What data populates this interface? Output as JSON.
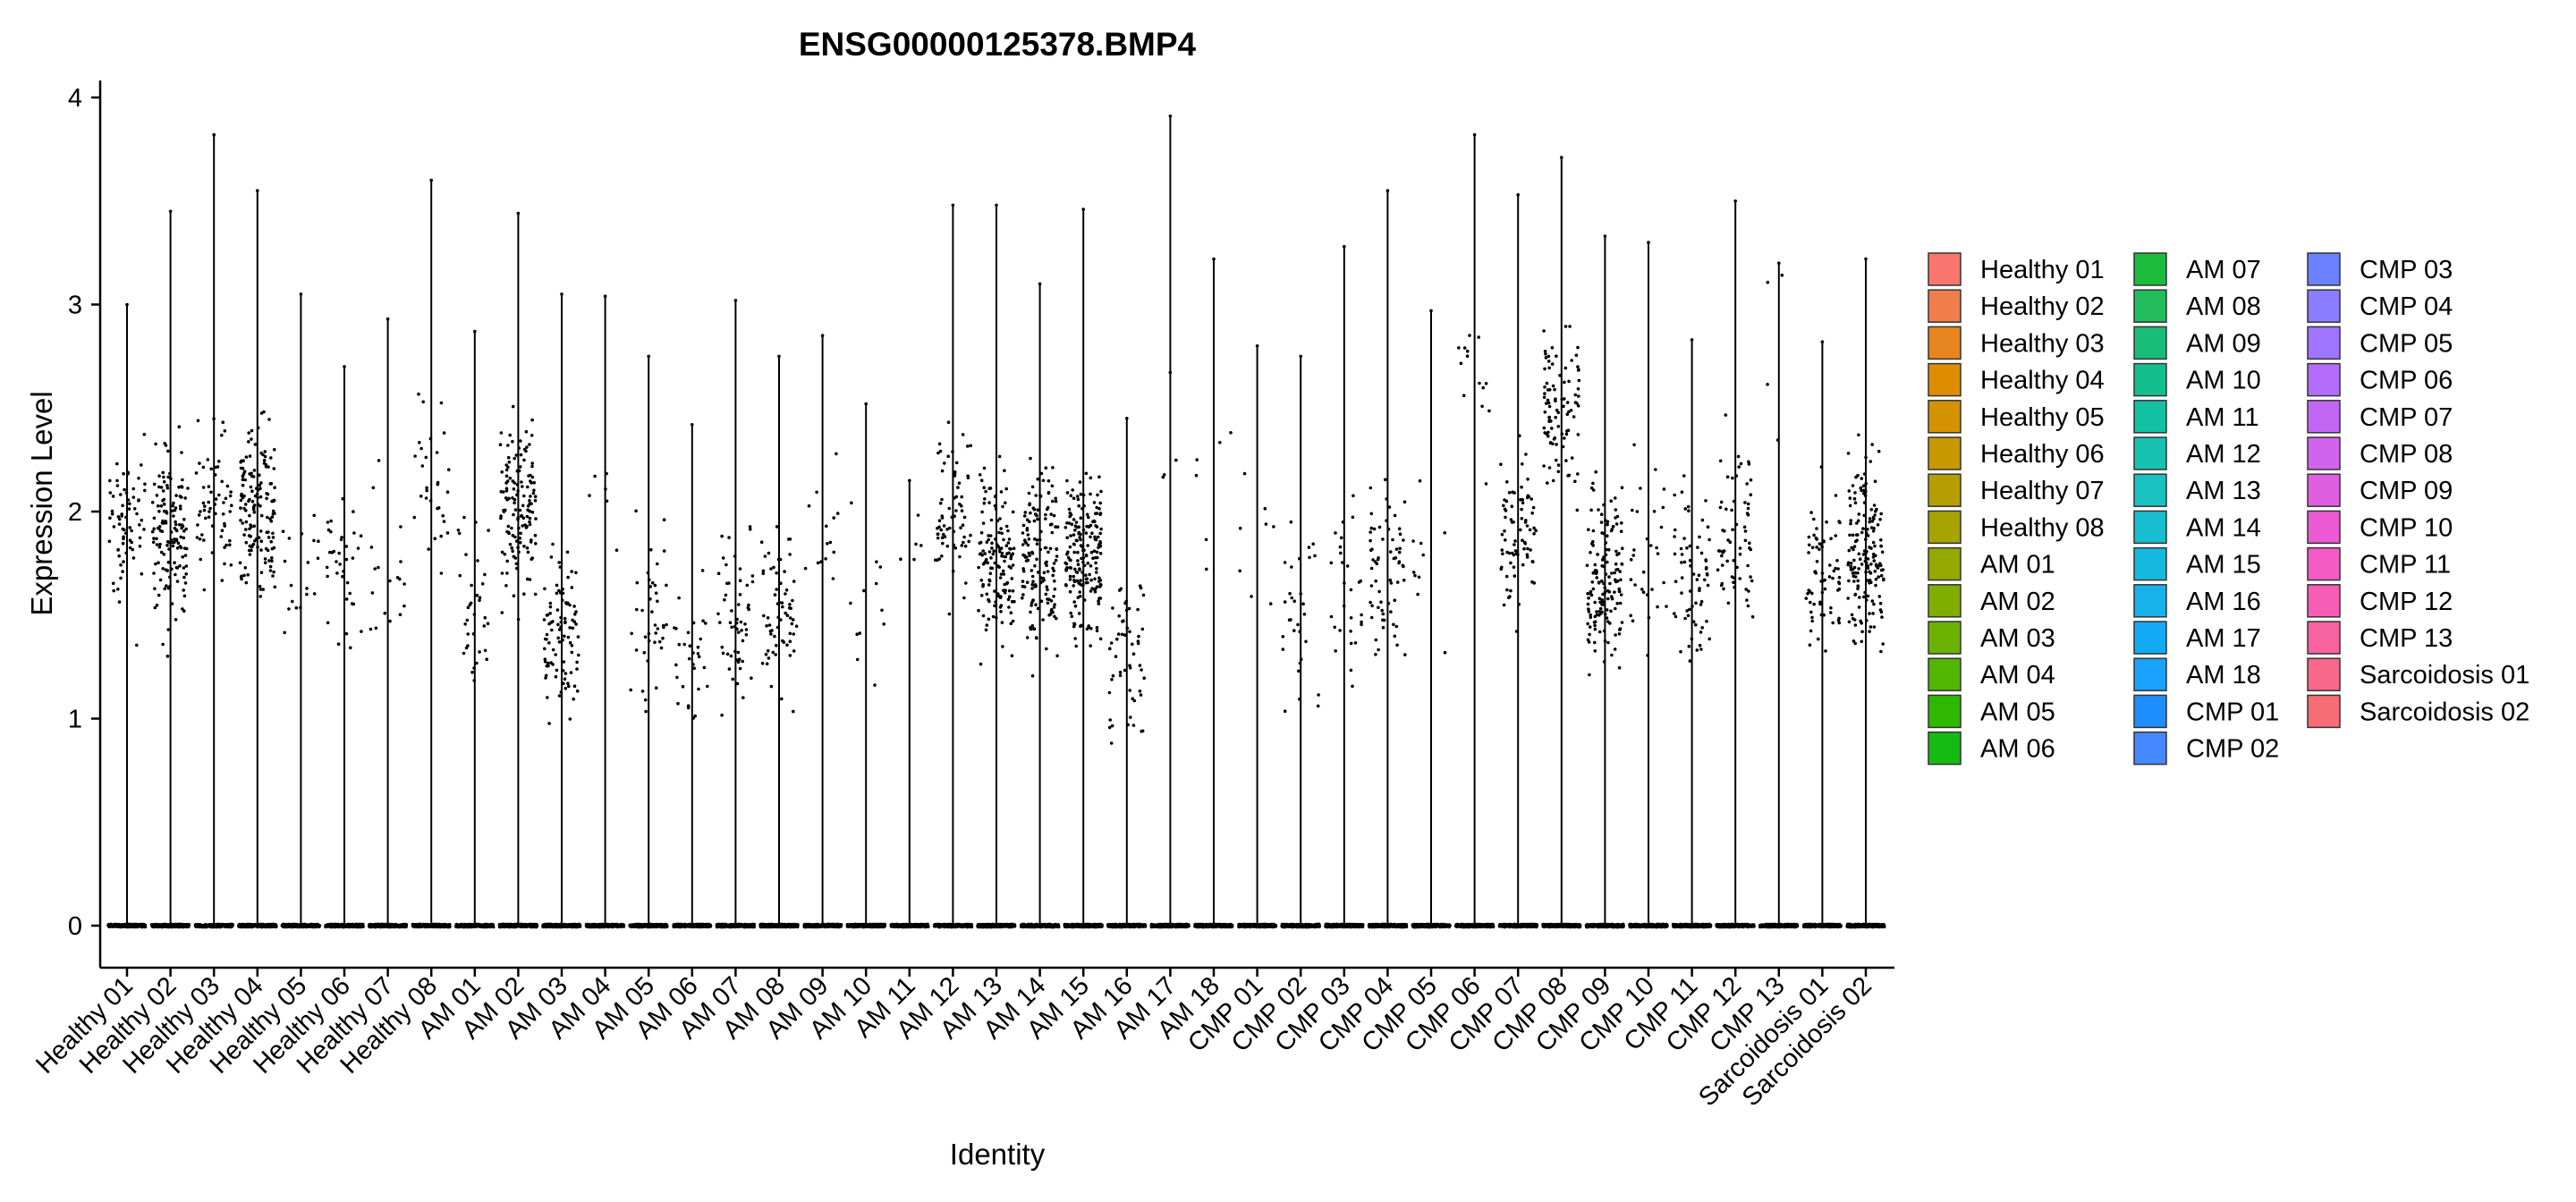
{
  "chart_data": {
    "type": "violin",
    "title": "ENSG00000125378.BMP4",
    "xlabel": "Identity",
    "ylabel": "Expression Level",
    "ylim": [
      0,
      4.1
    ],
    "yticks": [
      0,
      1,
      2,
      3,
      4
    ],
    "grid": false,
    "legend_position": "right",
    "points_shown": true,
    "categories": [
      "Healthy 01",
      "Healthy 02",
      "Healthy 03",
      "Healthy 04",
      "Healthy 05",
      "Healthy 06",
      "Healthy 07",
      "Healthy 08",
      "AM 01",
      "AM 02",
      "AM 03",
      "AM 04",
      "AM 05",
      "AM 06",
      "AM 07",
      "AM 08",
      "AM 09",
      "AM 10",
      "AM 11",
      "AM 12",
      "AM 13",
      "AM 14",
      "AM 15",
      "AM 16",
      "AM 17",
      "AM 18",
      "CMP 01",
      "CMP 02",
      "CMP 03",
      "CMP 04",
      "CMP 05",
      "CMP 06",
      "CMP 07",
      "CMP 08",
      "CMP 09",
      "CMP 10",
      "CMP 11",
      "CMP 12",
      "CMP 13",
      "Sarcoidosis 01",
      "Sarcoidosis 02"
    ],
    "max_values": [
      3.0,
      3.45,
      3.82,
      3.55,
      3.05,
      2.7,
      2.93,
      3.6,
      2.87,
      3.44,
      3.05,
      3.04,
      2.75,
      2.42,
      3.02,
      2.75,
      2.85,
      2.52,
      2.15,
      3.48,
      3.48,
      3.1,
      3.46,
      2.45,
      3.91,
      3.22,
      2.8,
      2.75,
      3.28,
      3.55,
      2.97,
      3.82,
      3.53,
      3.71,
      3.33,
      3.3,
      2.83,
      3.5,
      3.2,
      2.82,
      3.22
    ],
    "point_center": [
      1.9,
      1.9,
      2.0,
      2.0,
      1.7,
      1.7,
      1.8,
      2.1,
      1.6,
      2.0,
      1.4,
      2.1,
      1.5,
      1.3,
      1.5,
      1.5,
      1.9,
      1.6,
      1.8,
      2.0,
      1.8,
      1.8,
      1.8,
      1.3,
      2.4,
      2.2,
      1.8,
      1.5,
      1.6,
      1.7,
      1.6,
      2.7,
      1.9,
      2.5,
      1.7,
      1.8,
      1.7,
      1.9,
      2.9,
      1.7,
      1.8
    ],
    "point_counts": [
      70,
      140,
      60,
      150,
      18,
      35,
      18,
      30,
      35,
      140,
      95,
      6,
      40,
      30,
      55,
      65,
      14,
      12,
      5,
      70,
      140,
      150,
      190,
      55,
      4,
      6,
      8,
      30,
      28,
      65,
      10,
      14,
      80,
      95,
      150,
      30,
      65,
      65,
      4,
      70,
      170
    ],
    "colors": [
      "#F8766D",
      "#F07E4B",
      "#E7851E",
      "#DF8D00",
      "#D49200",
      "#C79800",
      "#B79E00",
      "#A6A200",
      "#94A800",
      "#7FAE00",
      "#6AB100",
      "#52B500",
      "#2EB900",
      "#14BB13",
      "#1CBD3C",
      "#21BC5C",
      "#19BD78",
      "#14BF8E",
      "#13C0A1",
      "#18C2B1",
      "#19C1C1",
      "#17BED0",
      "#15B9DD",
      "#18B2EA",
      "#13ABF6",
      "#1AA2FF",
      "#1E8EFF",
      "#4588FF",
      "#6B81FF",
      "#8A7DFF",
      "#9F74FF",
      "#B46DFB",
      "#C267F4",
      "#D263EC",
      "#E05EE2",
      "#EC5AD4",
      "#F35BC5",
      "#F65EB5",
      "#F8639F",
      "#F8688A",
      "#F76D75"
    ]
  }
}
